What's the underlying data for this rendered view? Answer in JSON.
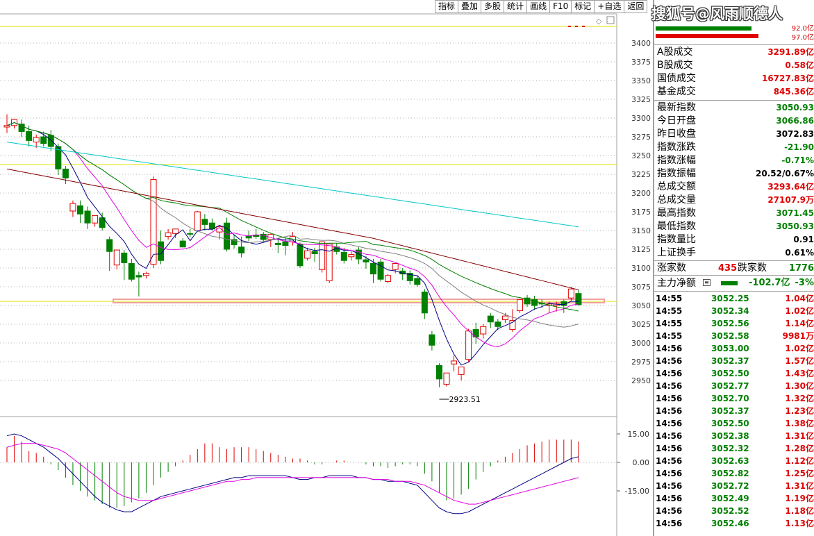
{
  "toolbar": [
    "指标",
    "叠加",
    "多股",
    "统计",
    "画线",
    "F10",
    "标记",
    "+自选",
    "返回"
  ],
  "watermark": "搜狐号@风雨顺德人",
  "price_axis": {
    "ticks": [
      3400,
      3375,
      3350,
      3325,
      3300,
      3275,
      3250,
      3225,
      3200,
      3175,
      3150,
      3125,
      3100,
      3075,
      3050,
      3025,
      3000,
      2975,
      2950
    ],
    "min_label": "2923.51"
  },
  "macd_axis": {
    "ticks": [
      "15.00",
      "0.00",
      "-15.00"
    ]
  },
  "colors": {
    "up": "#e00000",
    "down": "#008000",
    "bg": "#ffffff",
    "ma5": "#000080",
    "ma10": "#e000e0",
    "ma20": "#808080",
    "ma30": "#008000",
    "ma60": "#800000",
    "ma120": "#00c8c8"
  },
  "flow_top": {
    "buy_label": "92.0亿",
    "sell_label": "97.0亿"
  },
  "turnover": [
    {
      "label": "A股成交",
      "value": "3291.89亿",
      "color": "red"
    },
    {
      "label": "B股成交",
      "value": "0.58亿",
      "color": "red"
    },
    {
      "label": "国债成交",
      "value": "16727.83亿",
      "color": "red"
    },
    {
      "label": "基金成交",
      "value": "845.36亿",
      "color": "red"
    }
  ],
  "stats": [
    {
      "label": "最新指数",
      "value": "3050.93",
      "color": "green"
    },
    {
      "label": "今日开盘",
      "value": "3066.86",
      "color": "green"
    },
    {
      "label": "昨日收盘",
      "value": "3072.83",
      "color": "black"
    },
    {
      "label": "指数涨跌",
      "value": "-21.90",
      "color": "green"
    },
    {
      "label": "指数涨幅",
      "value": "-0.71%",
      "color": "green"
    },
    {
      "label": "指数振幅",
      "value": "20.52/0.67%",
      "color": "black"
    },
    {
      "label": "总成交额",
      "value": "3293.64亿",
      "color": "red"
    },
    {
      "label": "总成交量",
      "value": "27107.9万",
      "color": "red"
    },
    {
      "label": "最高指数",
      "value": "3071.45",
      "color": "green"
    },
    {
      "label": "最低指数",
      "value": "3050.93",
      "color": "green"
    },
    {
      "label": "指数量比",
      "value": "0.91",
      "color": "black"
    },
    {
      "label": "上证换手",
      "value": "0.61%",
      "color": "black"
    }
  ],
  "rise_fall": {
    "rise_label": "涨家数",
    "rise_value": "435",
    "fall_label": "跌家数",
    "fall_value": "1776"
  },
  "main_flow": {
    "label": "主力净额",
    "value": "-102.7亿",
    "pct": "-3%"
  },
  "trades": [
    {
      "time": "14:55",
      "price": "3052.25",
      "vol": "1.04亿"
    },
    {
      "time": "14:55",
      "price": "3052.34",
      "vol": "1.02亿"
    },
    {
      "time": "14:55",
      "price": "3052.56",
      "vol": "1.14亿"
    },
    {
      "time": "14:55",
      "price": "3052.58",
      "vol": "9981万"
    },
    {
      "time": "14:56",
      "price": "3053.00",
      "vol": "1.02亿"
    },
    {
      "time": "14:56",
      "price": "3052.37",
      "vol": "1.57亿"
    },
    {
      "time": "14:56",
      "price": "3052.50",
      "vol": "1.43亿"
    },
    {
      "time": "14:56",
      "price": "3052.77",
      "vol": "1.30亿"
    },
    {
      "time": "14:56",
      "price": "3052.70",
      "vol": "1.32亿"
    },
    {
      "time": "14:56",
      "price": "3052.37",
      "vol": "1.23亿"
    },
    {
      "time": "14:56",
      "price": "3052.50",
      "vol": "1.38亿"
    },
    {
      "time": "14:56",
      "price": "3052.38",
      "vol": "1.31亿"
    },
    {
      "time": "14:56",
      "price": "3052.32",
      "vol": "1.28亿"
    },
    {
      "time": "14:56",
      "price": "3052.63",
      "vol": "1.12亿"
    },
    {
      "time": "14:56",
      "price": "3052.82",
      "vol": "1.25亿"
    },
    {
      "time": "14:56",
      "price": "3052.72",
      "vol": "1.31亿"
    },
    {
      "time": "14:56",
      "price": "3052.49",
      "vol": "1.19亿"
    },
    {
      "time": "14:56",
      "price": "3052.52",
      "vol": "1.18亿"
    },
    {
      "time": "14:56",
      "price": "3052.46",
      "vol": "1.13亿"
    }
  ],
  "chart_data": {
    "type": "candlestick",
    "candles": [
      [
        3288,
        3305,
        3290,
        3280
      ],
      [
        3290,
        3292,
        3298,
        3286
      ],
      [
        3292,
        3298,
        3282,
        3275
      ],
      [
        3282,
        3290,
        3270,
        3262
      ],
      [
        3268,
        3278,
        3274,
        3260
      ],
      [
        3275,
        3282,
        3266,
        3262
      ],
      [
        3277,
        3284,
        3262,
        3256
      ],
      [
        3262,
        3266,
        3232,
        3224
      ],
      [
        3232,
        3236,
        3220,
        3212
      ],
      [
        3176,
        3190,
        3186,
        3168
      ],
      [
        3183,
        3190,
        3172,
        3160
      ],
      [
        3176,
        3182,
        3160,
        3152
      ],
      [
        3160,
        3168,
        3170,
        3155
      ],
      [
        3167,
        3174,
        3154,
        3150
      ],
      [
        3138,
        3142,
        3122,
        3096
      ],
      [
        3104,
        3120,
        3124,
        3098
      ],
      [
        3120,
        3124,
        3107,
        3084
      ],
      [
        3106,
        3112,
        3085,
        3082
      ],
      [
        3090,
        3095,
        3088,
        3062
      ],
      [
        3090,
        3095,
        3093,
        3086
      ],
      [
        3105,
        3222,
        3218,
        3100
      ],
      [
        3135,
        3150,
        3110,
        3105
      ],
      [
        3142,
        3152,
        3147,
        3138
      ],
      [
        3146,
        3152,
        3152,
        3140
      ],
      [
        3136,
        3140,
        3128,
        3130
      ],
      [
        3146,
        3152,
        3145,
        3141
      ],
      [
        3150,
        3176,
        3175,
        3148
      ],
      [
        3165,
        3172,
        3158,
        3150
      ],
      [
        3160,
        3166,
        3152,
        3150
      ],
      [
        3148,
        3156,
        3155,
        3138
      ],
      [
        3160,
        3167,
        3125,
        3122
      ],
      [
        3138,
        3145,
        3131,
        3126
      ],
      [
        3128,
        3142,
        3120,
        3114
      ],
      [
        3143,
        3150,
        3140,
        3136
      ],
      [
        3144,
        3152,
        3142,
        3139
      ],
      [
        3145,
        3148,
        3138,
        3135
      ],
      [
        3138,
        3146,
        3145,
        3128
      ],
      [
        3133,
        3140,
        3131,
        3120
      ],
      [
        3135,
        3140,
        3130,
        3117
      ],
      [
        3135,
        3148,
        3142,
        3130
      ],
      [
        3131,
        3134,
        3103,
        3100
      ],
      [
        3113,
        3127,
        3123,
        3110
      ],
      [
        3122,
        3127,
        3119,
        3108
      ],
      [
        3098,
        3133,
        3135,
        3094
      ],
      [
        3083,
        3090,
        3132,
        3080
      ],
      [
        3128,
        3133,
        3122,
        3118
      ],
      [
        3121,
        3127,
        3110,
        3106
      ],
      [
        3115,
        3122,
        3118,
        3110
      ],
      [
        3124,
        3128,
        3112,
        3105
      ],
      [
        3111,
        3116,
        3108,
        3099
      ],
      [
        3106,
        3112,
        3092,
        3080
      ],
      [
        3108,
        3112,
        3085,
        3082
      ],
      [
        3082,
        3092,
        3090,
        3080
      ],
      [
        3098,
        3103,
        3106,
        3093
      ],
      [
        3096,
        3100,
        3092,
        3084
      ],
      [
        3093,
        3097,
        3083,
        3078
      ],
      [
        3086,
        3090,
        3078,
        3075
      ],
      [
        3068,
        3072,
        3040,
        3032
      ],
      [
        3011,
        3016,
        2997,
        2990
      ],
      [
        2970,
        2973,
        2952,
        2941
      ],
      [
        2945,
        2955,
        2960,
        2942
      ],
      [
        2972,
        2983,
        2976,
        2962
      ],
      [
        2958,
        2963,
        2968,
        2950
      ],
      [
        2978,
        3019,
        3016,
        2975
      ],
      [
        3018,
        3027,
        3008,
        2999
      ],
      [
        3012,
        3025,
        3022,
        3006
      ],
      [
        3036,
        3040,
        3028,
        3020
      ],
      [
        3028,
        3032,
        3022,
        3017
      ],
      [
        3031,
        3040,
        3036,
        3027
      ],
      [
        3018,
        3045,
        3030,
        3015
      ],
      [
        3043,
        3050,
        3058,
        3040
      ],
      [
        3060,
        3064,
        3052,
        3048
      ],
      [
        3058,
        3063,
        3050,
        3044
      ],
      [
        3053,
        3058,
        3052,
        3047
      ],
      [
        3050,
        3055,
        3052,
        3040
      ],
      [
        3050,
        3055,
        3052,
        3042
      ],
      [
        3055,
        3058,
        3050,
        3040
      ],
      [
        3060,
        3075,
        3072,
        3056
      ],
      [
        3066,
        3071,
        3051,
        3050
      ]
    ],
    "min_label_value": 2923.51
  }
}
